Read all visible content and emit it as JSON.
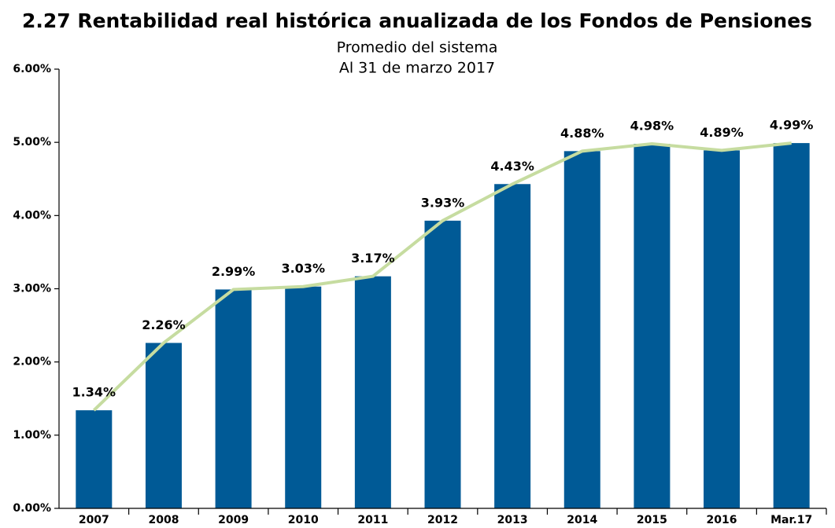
{
  "chart_data": {
    "type": "bar",
    "title": "2.27 Rentabilidad real histórica anualizada de los Fondos de Pensiones",
    "subtitle": [
      "Promedio del sistema",
      "Al 31 de marzo 2017"
    ],
    "categories": [
      "2007",
      "2008",
      "2009",
      "2010",
      "2011",
      "2012",
      "2013",
      "2014",
      "2015",
      "2016",
      "Mar.17"
    ],
    "values": [
      1.34,
      2.26,
      2.99,
      3.03,
      3.17,
      3.93,
      4.43,
      4.88,
      4.98,
      4.89,
      4.99
    ],
    "value_labels": [
      "1.34%",
      "2.26%",
      "2.99%",
      "3.03%",
      "3.17%",
      "3.93%",
      "4.43%",
      "4.88%",
      "4.98%",
      "4.89%",
      "4.99%"
    ],
    "color": "#005a96",
    "line_color": "#c6dca0",
    "ylim": [
      0,
      6
    ],
    "yticks": [
      {
        "value": 0,
        "label": "0.00%"
      },
      {
        "value": 1,
        "label": "1.00%"
      },
      {
        "value": 2,
        "label": "2.00%"
      },
      {
        "value": 3,
        "label": "3.00%"
      },
      {
        "value": 4,
        "label": "4.00%"
      },
      {
        "value": 5,
        "label": "5.00%"
      },
      {
        "value": 6,
        "label": "6.00%"
      }
    ]
  }
}
